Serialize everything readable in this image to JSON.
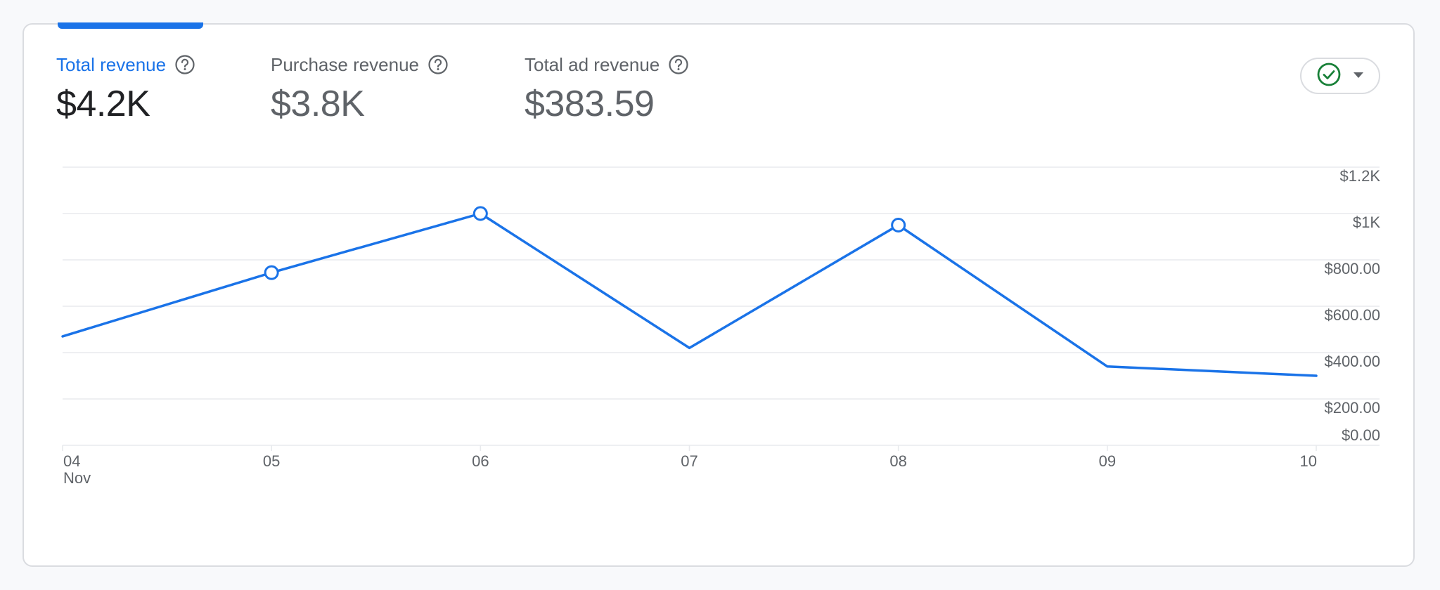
{
  "metrics": [
    {
      "label": "Total revenue",
      "value": "$4.2K",
      "active": true
    },
    {
      "label": "Purchase revenue",
      "value": "$3.8K",
      "active": false
    },
    {
      "label": "Total ad revenue",
      "value": "$383.59",
      "active": false
    }
  ],
  "status_button": {
    "icon": "check-circle-icon",
    "dropdown_icon": "caret-down-icon"
  },
  "colors": {
    "accent": "#1a73e8",
    "status_green": "#188038",
    "grid": "#e8eaed"
  },
  "chart_data": {
    "type": "line",
    "x": [
      "04",
      "05",
      "06",
      "07",
      "08",
      "09",
      "10"
    ],
    "x_sublabel": "Nov",
    "series": [
      {
        "values": [
          470,
          745,
          1000,
          420,
          950,
          340,
          300
        ]
      }
    ],
    "highlighted_points": [
      "05",
      "06",
      "08"
    ],
    "y_ticks": [
      "$1.2K",
      "$1K",
      "$800.00",
      "$600.00",
      "$400.00",
      "$200.00",
      "$0.00"
    ],
    "ylim": [
      0,
      1200
    ],
    "grid": true,
    "y_axis_position": "right"
  }
}
